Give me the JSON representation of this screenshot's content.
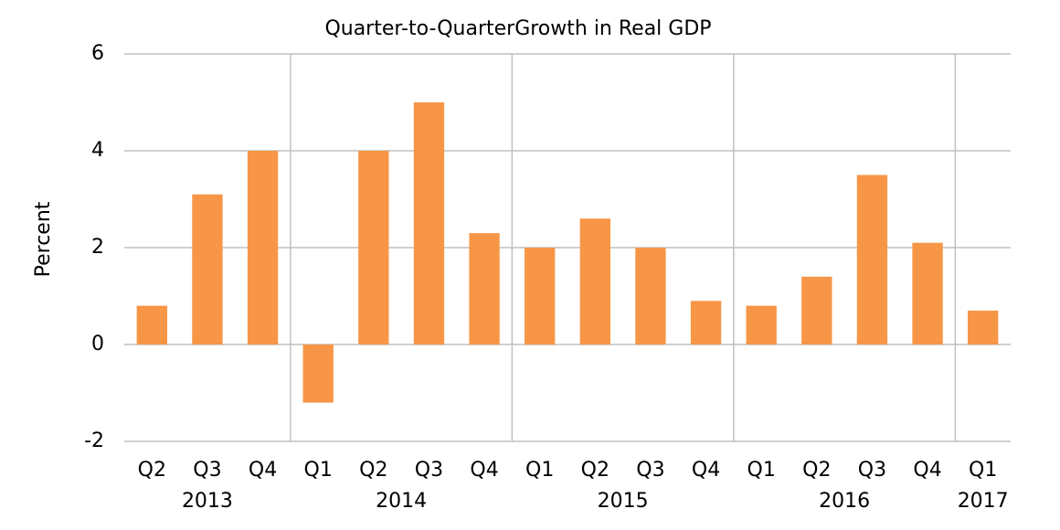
{
  "chart_data": {
    "type": "bar",
    "title": "Quarter-to-QuarterGrowth in Real GDP",
    "y_label": "Percent",
    "categories": [
      "Q2",
      "Q3",
      "Q4",
      "Q1",
      "Q2",
      "Q3",
      "Q4",
      "Q1",
      "Q2",
      "Q3",
      "Q4",
      "Q1",
      "Q2",
      "Q3",
      "Q4",
      "Q1"
    ],
    "group_labels": [
      "2013",
      "2014",
      "2015",
      "2016",
      "2017"
    ],
    "values": [
      0.8,
      3.1,
      4.0,
      -1.2,
      4.0,
      5.0,
      2.3,
      2.0,
      2.6,
      2.0,
      0.9,
      0.8,
      1.4,
      3.5,
      2.1,
      0.7
    ],
    "color": "#f79646",
    "ylim": [
      -2,
      6
    ],
    "yticks": [
      -2,
      0,
      2,
      4,
      6
    ],
    "grid": true
  }
}
